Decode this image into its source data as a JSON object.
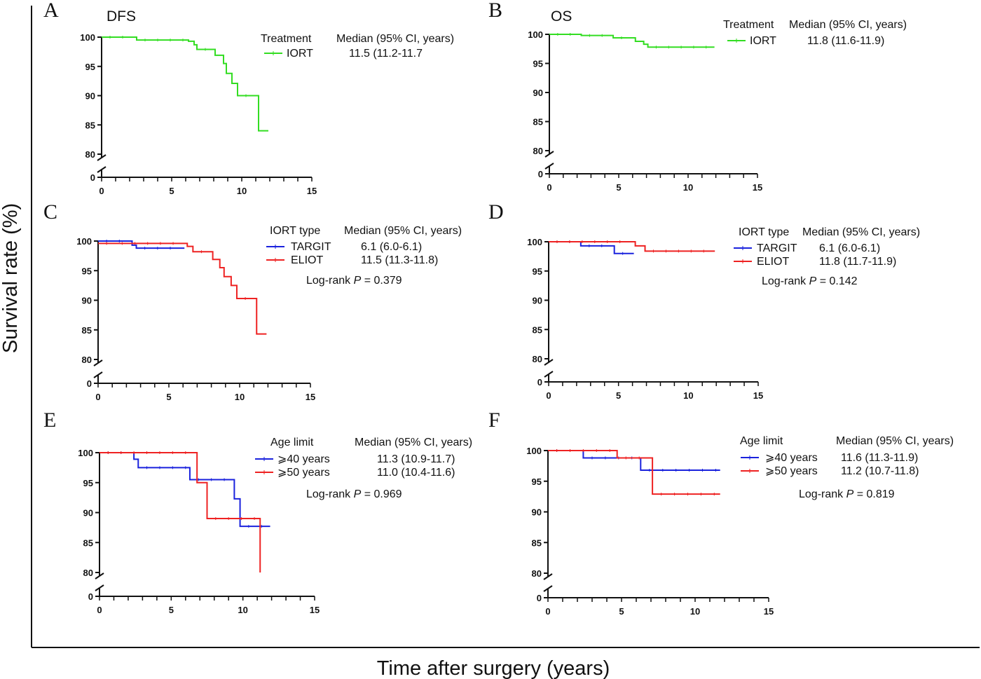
{
  "figure": {
    "ylabel": "Survival rate (%)",
    "xlabel": "Time after surgery (years)"
  },
  "colors": {
    "green": "#33dd22",
    "blue": "#1a22dd",
    "red": "#ee2222"
  },
  "chart_data": [
    {
      "letter": "A",
      "title": "DFS",
      "type": "line",
      "xlim": [
        0,
        15
      ],
      "ylim": [
        80,
        100
      ],
      "y_break": true,
      "xticks": [
        "0",
        "5",
        "10",
        "15"
      ],
      "yticks": [
        "100",
        "95",
        "90",
        "85",
        "80"
      ],
      "y_zero": "0",
      "legend": {
        "header_group": "Treatment",
        "header_median": "Median (95% CI, years)"
      },
      "series": [
        {
          "name": "IORT",
          "color": "green",
          "median_ci": "11.5 (11.2-11.7",
          "points": [
            [
              0,
              100
            ],
            [
              2.5,
              99.5
            ],
            [
              6.2,
              99.3
            ],
            [
              6.6,
              98.7
            ],
            [
              6.8,
              97.9
            ],
            [
              8.1,
              96.9
            ],
            [
              8.7,
              95.5
            ],
            [
              8.9,
              93.8
            ],
            [
              9.3,
              92.1
            ],
            [
              9.7,
              90
            ],
            [
              11.2,
              84
            ],
            [
              11.9,
              84
            ]
          ]
        }
      ]
    },
    {
      "letter": "B",
      "title": "OS",
      "type": "line",
      "xlim": [
        0,
        15
      ],
      "ylim": [
        80,
        100
      ],
      "y_break": true,
      "xticks": [
        "0",
        "5",
        "10",
        "15"
      ],
      "yticks": [
        "100",
        "95",
        "90",
        "85",
        "80"
      ],
      "y_zero": "0",
      "legend": {
        "header_group": "Treatment",
        "header_median": "Median (95% CI, years)"
      },
      "series": [
        {
          "name": "IORT",
          "color": "green",
          "median_ci": "11.8 (11.6-11.9)",
          "points": [
            [
              0,
              100
            ],
            [
              2.3,
              99.8
            ],
            [
              4.6,
              99.4
            ],
            [
              6.2,
              98.8
            ],
            [
              6.8,
              98.3
            ],
            [
              7.1,
              97.8
            ],
            [
              11.9,
              97.8
            ]
          ]
        }
      ]
    },
    {
      "letter": "C",
      "title": "",
      "type": "line",
      "xlim": [
        0,
        15
      ],
      "ylim": [
        80,
        100
      ],
      "y_break": true,
      "xticks": [
        "0",
        "5",
        "10",
        "15"
      ],
      "yticks": [
        "100",
        "95",
        "90",
        "85",
        "80"
      ],
      "y_zero": "0",
      "legend": {
        "header_group": "IORT type",
        "header_median": "Median (95% CI, years)",
        "logrank": "0.379"
      },
      "series": [
        {
          "name": "TARGIT",
          "color": "blue",
          "median_ci": "6.1 (6.0-6.1)",
          "points": [
            [
              0,
              100
            ],
            [
              2.4,
              99.3
            ],
            [
              2.7,
              98.8
            ],
            [
              6.1,
              98.8
            ]
          ]
        },
        {
          "name": "ELIOT",
          "color": "red",
          "median_ci": "11.5 (11.3-11.8)",
          "points": [
            [
              0,
              99.6
            ],
            [
              1.1,
              99.6
            ],
            [
              6.3,
              99.1
            ],
            [
              6.7,
              98.2
            ],
            [
              8.1,
              96.9
            ],
            [
              8.6,
              95.5
            ],
            [
              8.9,
              94
            ],
            [
              9.4,
              92.5
            ],
            [
              9.8,
              90.3
            ],
            [
              11.2,
              84.3
            ],
            [
              11.9,
              84.3
            ]
          ]
        }
      ]
    },
    {
      "letter": "D",
      "title": "",
      "type": "line",
      "xlim": [
        0,
        15
      ],
      "ylim": [
        80,
        100
      ],
      "y_break": true,
      "xticks": [
        "0",
        "5",
        "10",
        "15"
      ],
      "yticks": [
        "100",
        "95",
        "90",
        "85",
        "80"
      ],
      "y_zero": "0",
      "legend": {
        "header_group": "IORT type",
        "header_median": "Median (95% CI, years)",
        "logrank": "0.142"
      },
      "series": [
        {
          "name": "TARGIT",
          "color": "blue",
          "median_ci": "6.1 (6.0-6.1)",
          "points": [
            [
              0,
              100
            ],
            [
              2.3,
              99.3
            ],
            [
              4.7,
              98
            ],
            [
              6.1,
              98
            ]
          ]
        },
        {
          "name": "ELIOT",
          "color": "red",
          "median_ci": "11.8 (11.7-11.9)",
          "points": [
            [
              0,
              100
            ],
            [
              6.2,
              99.3
            ],
            [
              6.9,
              98.4
            ],
            [
              11.9,
              98.4
            ]
          ]
        }
      ]
    },
    {
      "letter": "E",
      "title": "",
      "type": "line",
      "xlim": [
        0,
        15
      ],
      "ylim": [
        80,
        100
      ],
      "y_break": true,
      "xticks": [
        "0",
        "5",
        "10",
        "15"
      ],
      "yticks": [
        "100",
        "95",
        "90",
        "85",
        "80"
      ],
      "y_zero": "0",
      "legend": {
        "header_group": "Age limit",
        "header_median": "Median (95% CI, years)",
        "logrank": "0.969"
      },
      "series": [
        {
          "name": "⩾40 years",
          "color": "blue",
          "median_ci": "11.3 (10.9-11.7)",
          "points": [
            [
              0,
              100
            ],
            [
              2.4,
              98.9
            ],
            [
              2.7,
              97.5
            ],
            [
              6.3,
              95.5
            ],
            [
              9.4,
              92.3
            ],
            [
              9.8,
              87.7
            ],
            [
              11.9,
              87.7
            ]
          ]
        },
        {
          "name": "⩾50 years",
          "color": "red",
          "median_ci": "11.0 (10.4-11.6)",
          "points": [
            [
              0,
              100
            ],
            [
              6.8,
              95
            ],
            [
              7.5,
              89
            ],
            [
              11.2,
              80
            ]
          ]
        }
      ]
    },
    {
      "letter": "F",
      "title": "",
      "type": "line",
      "xlim": [
        0,
        15
      ],
      "ylim": [
        80,
        100
      ],
      "y_break": true,
      "xticks": [
        "0",
        "5",
        "10",
        "15"
      ],
      "yticks": [
        "100",
        "95",
        "90",
        "85",
        "80"
      ],
      "y_zero": "0",
      "legend": {
        "header_group": "Age limit",
        "header_median": "Median (95% CI, years)",
        "logrank": "0.819"
      },
      "series": [
        {
          "name": "⩾40 years",
          "color": "blue",
          "median_ci": "11.6 (11.3-11.9)",
          "points": [
            [
              0,
              100
            ],
            [
              2.4,
              98.8
            ],
            [
              6.3,
              96.8
            ],
            [
              11.7,
              96.8
            ]
          ]
        },
        {
          "name": "⩾50 years",
          "color": "red",
          "median_ci": "11.2 (10.7-11.8)",
          "points": [
            [
              0,
              100
            ],
            [
              4.7,
              98.8
            ],
            [
              7.1,
              92.9
            ],
            [
              11.7,
              92.9
            ]
          ]
        }
      ]
    }
  ]
}
